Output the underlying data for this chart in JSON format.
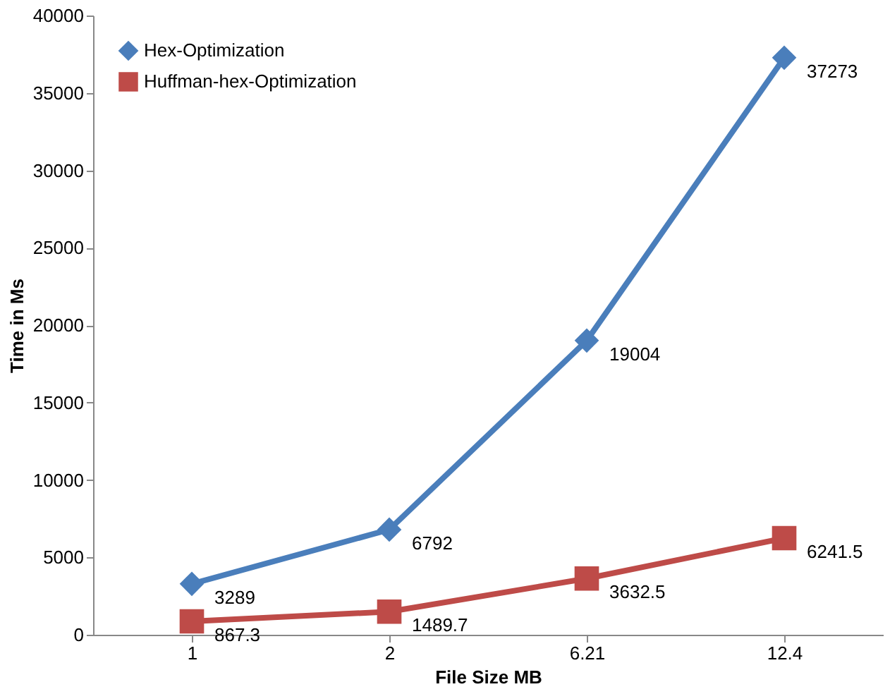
{
  "chart_data": {
    "type": "line",
    "xlabel": "File Size MB",
    "ylabel": "Time in Ms",
    "categories": [
      "1",
      "2",
      "6.21",
      "12.4"
    ],
    "series": [
      {
        "name": "Hex-Optimization",
        "color": "#4a7ebb",
        "marker": "diamond",
        "values": [
          3289,
          6792,
          19004,
          37273
        ]
      },
      {
        "name": "Huffman-hex-Optimization",
        "color": "#be4b48",
        "marker": "square",
        "values": [
          867.3,
          1489.7,
          3632.5,
          6241.5
        ]
      }
    ],
    "ylim": [
      0,
      40000
    ],
    "yticks": [
      0,
      5000,
      10000,
      15000,
      20000,
      25000,
      30000,
      35000,
      40000
    ],
    "grid": false,
    "legend": "top left",
    "data_labels": true
  }
}
